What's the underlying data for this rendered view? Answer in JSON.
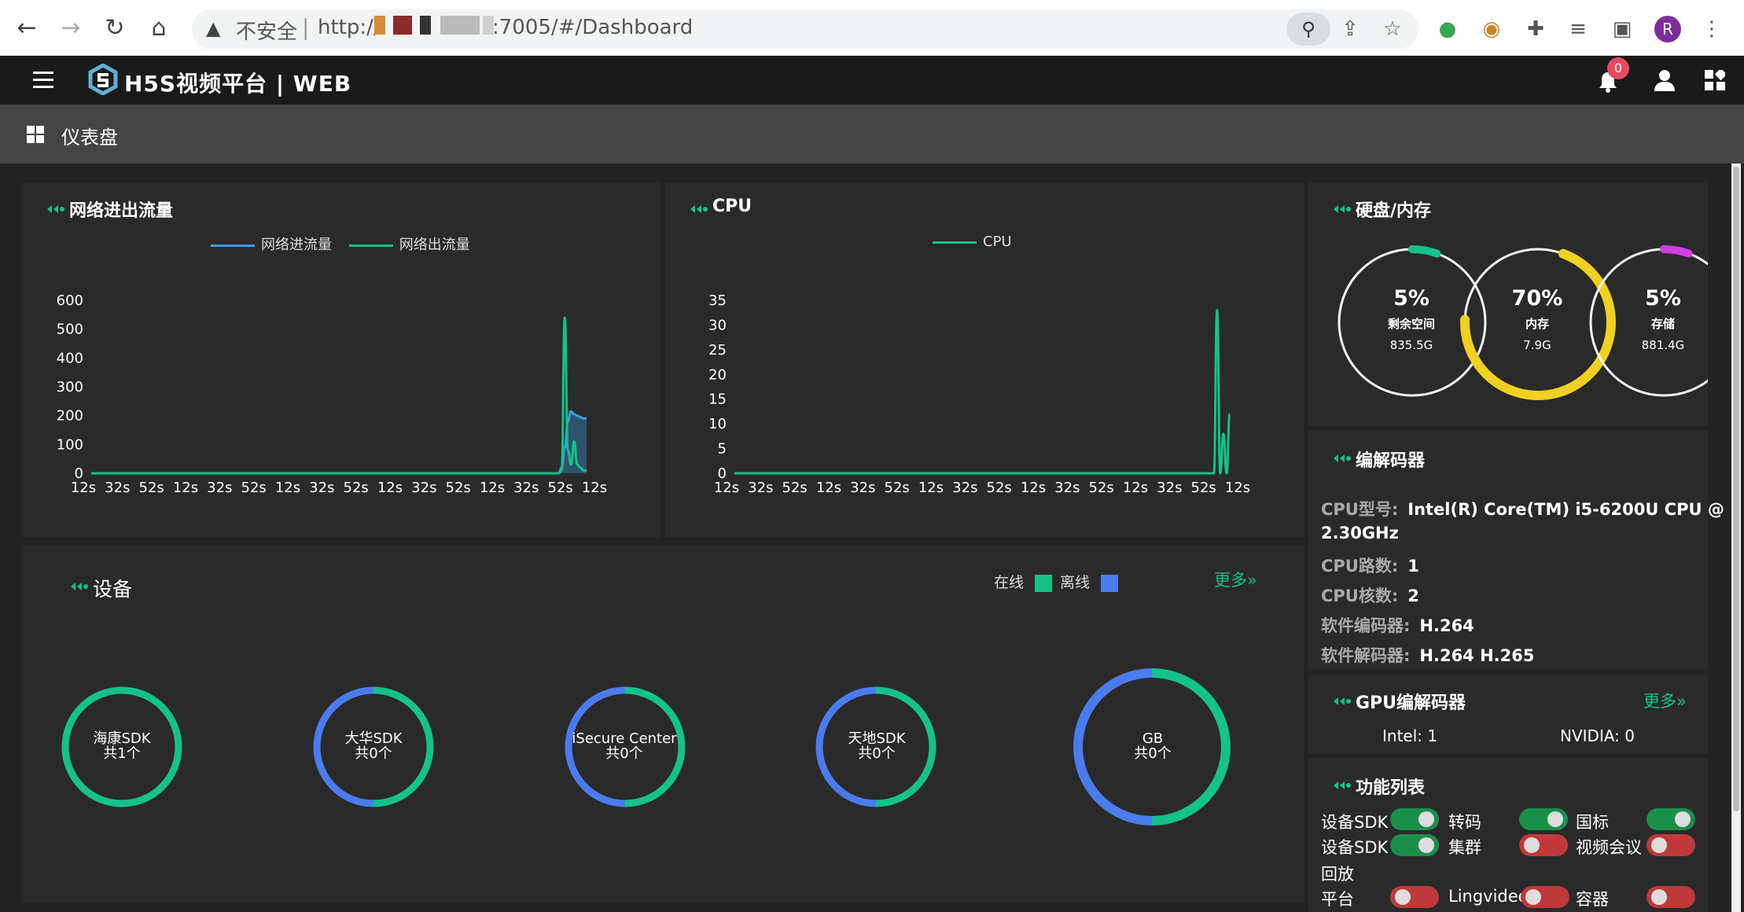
{
  "browser": {
    "insecure_label": "不安全",
    "url_prefix": "http://",
    "url_suffix": ":7005/#/Dashboard",
    "profile_initial": "R"
  },
  "app": {
    "brand": "H5S视频平台 | WEB",
    "notification_count": "0"
  },
  "breadcrumb": {
    "title": "仪表盘"
  },
  "colors": {
    "accent_green": "#14c28a",
    "accent_blue": "#4a7cf0",
    "network_in": "#3aa0e8",
    "network_out": "#14c28a",
    "memory_gauge": "#f0d020",
    "storage_gauge": "#d040e0",
    "toggle_on": "#1a8f4a",
    "toggle_off": "#c0393a"
  },
  "panels": {
    "network": {
      "title": "网络进出流量"
    },
    "cpu": {
      "title": "CPU"
    },
    "disk": {
      "title": "硬盘/内存"
    },
    "codec": {
      "title": "编解码器"
    },
    "gpu": {
      "title": "GPU编解码器",
      "more": "更多»"
    },
    "features": {
      "title": "功能列表"
    },
    "devices": {
      "title": "设备",
      "online_label": "在线",
      "offline_label": "离线",
      "more": "更多»"
    }
  },
  "chart_data": [
    {
      "type": "line",
      "chart": "network",
      "series": [
        {
          "name": "网络进流量",
          "values": [
            0,
            0,
            0,
            0,
            0,
            0,
            0,
            0,
            0,
            0,
            0,
            0,
            0,
            0,
            0,
            0,
            0,
            0,
            0,
            0,
            0,
            0,
            0,
            0,
            0,
            0,
            0,
            0,
            0,
            0,
            0,
            0,
            0,
            0,
            0,
            0,
            0,
            0,
            0,
            0,
            0,
            0,
            0,
            0,
            0,
            0,
            0,
            0,
            0,
            0,
            0,
            0,
            0,
            0,
            0,
            0,
            0,
            0,
            0,
            0,
            0,
            0,
            0,
            0,
            0,
            0,
            0,
            0,
            0,
            0,
            0,
            0,
            0,
            0,
            0,
            0,
            0,
            0,
            0,
            0,
            0,
            0,
            0,
            0,
            0,
            0,
            0,
            0,
            0,
            0,
            0,
            0,
            0,
            0,
            0,
            0,
            0,
            0,
            0,
            0,
            0,
            0,
            0,
            0,
            0,
            0,
            0,
            0,
            0,
            0,
            0,
            0,
            0,
            0,
            0,
            0,
            0,
            0,
            0,
            0,
            0,
            0,
            0,
            0,
            0,
            0,
            0,
            0,
            0,
            0,
            0,
            0,
            0,
            0,
            0,
            0,
            0,
            0,
            0,
            0,
            0,
            0,
            0,
            0,
            0,
            0,
            0,
            0,
            0,
            0,
            0,
            20,
            90,
            180,
            215,
            205,
            200,
            195,
            190,
            190
          ]
        },
        {
          "name": "网络出流量",
          "values": [
            0,
            0,
            0,
            0,
            0,
            0,
            0,
            0,
            0,
            0,
            0,
            0,
            0,
            0,
            0,
            0,
            0,
            0,
            0,
            0,
            0,
            0,
            0,
            0,
            0,
            0,
            0,
            0,
            0,
            0,
            0,
            0,
            0,
            0,
            0,
            0,
            0,
            0,
            0,
            0,
            0,
            0,
            0,
            0,
            0,
            0,
            0,
            0,
            0,
            0,
            0,
            0,
            0,
            0,
            0,
            0,
            0,
            0,
            0,
            0,
            0,
            0,
            0,
            0,
            0,
            0,
            0,
            0,
            0,
            0,
            0,
            0,
            0,
            0,
            0,
            0,
            0,
            0,
            0,
            0,
            0,
            0,
            0,
            0,
            0,
            0,
            0,
            0,
            0,
            0,
            0,
            0,
            0,
            0,
            0,
            0,
            0,
            0,
            0,
            0,
            0,
            0,
            0,
            0,
            0,
            0,
            0,
            0,
            0,
            0,
            0,
            0,
            0,
            0,
            0,
            0,
            0,
            0,
            0,
            0,
            0,
            0,
            0,
            0,
            0,
            0,
            0,
            0,
            0,
            0,
            0,
            0,
            0,
            0,
            0,
            0,
            0,
            0,
            0,
            0,
            0,
            0,
            0,
            0,
            0,
            0,
            0,
            0,
            0,
            0,
            0,
            10,
            540,
            80,
            30,
            110,
            30,
            20,
            10,
            10
          ]
        }
      ],
      "ylim": [
        0,
        600
      ],
      "yticks": [
        "0",
        "100",
        "200",
        "300",
        "400",
        "500",
        "600"
      ],
      "xtick_labels": [
        "12s",
        "32s",
        "52s",
        "12s",
        "32s",
        "52s",
        "12s",
        "32s",
        "52s",
        "12s",
        "32s",
        "52s",
        "12s",
        "32s",
        "52s",
        "12s"
      ]
    },
    {
      "type": "line",
      "chart": "cpu",
      "series": [
        {
          "name": "CPU",
          "values": [
            0,
            0,
            0,
            0,
            0,
            0,
            0,
            0,
            0,
            0,
            0,
            0,
            0,
            0,
            0,
            0,
            0,
            0,
            0,
            0,
            0,
            0,
            0,
            0,
            0,
            0,
            0,
            0,
            0,
            0,
            0,
            0,
            0,
            0,
            0,
            0,
            0,
            0,
            0,
            0,
            0,
            0,
            0,
            0,
            0,
            0,
            0,
            0,
            0,
            0,
            0,
            0,
            0,
            0,
            0,
            0,
            0,
            0,
            0,
            0,
            0,
            0,
            0,
            0,
            0,
            0,
            0,
            0,
            0,
            0,
            0,
            0,
            0,
            0,
            0,
            0,
            0,
            0,
            0,
            0,
            0,
            0,
            0,
            0,
            0,
            0,
            0,
            0,
            0,
            0,
            0,
            0,
            0,
            0,
            0,
            0,
            0,
            0,
            0,
            0,
            0,
            0,
            0,
            0,
            0,
            0,
            0,
            0,
            0,
            0,
            0,
            0,
            0,
            0,
            0,
            0,
            0,
            0,
            0,
            0,
            0,
            0,
            0,
            0,
            0,
            0,
            0,
            0,
            0,
            0,
            0,
            0,
            0,
            0,
            0,
            0,
            0,
            0,
            0,
            0,
            0,
            0,
            0,
            0,
            0,
            0,
            0,
            0,
            0,
            0,
            0,
            0,
            33,
            0,
            8,
            0,
            12
          ]
        }
      ],
      "ylim": [
        0,
        35
      ],
      "yticks": [
        "0",
        "5",
        "10",
        "15",
        "20",
        "25",
        "30",
        "35"
      ],
      "xtick_labels": [
        "12s",
        "32s",
        "52s",
        "12s",
        "32s",
        "52s",
        "12s",
        "32s",
        "52s",
        "12s",
        "32s",
        "52s",
        "12s",
        "32s",
        "52s",
        "12s"
      ]
    }
  ],
  "disk": [
    {
      "pct": "5%",
      "label": "剩余空间",
      "size": "835.5G",
      "value": 0.05,
      "color": "#14c28a"
    },
    {
      "pct": "70%",
      "label": "内存",
      "size": "7.9G",
      "value": 0.7,
      "color": "#f0d020"
    },
    {
      "pct": "5%",
      "label": "存储",
      "size": "881.4G",
      "value": 0.05,
      "color": "#d040e0"
    }
  ],
  "codec": {
    "cpu_model_label": "CPU型号:",
    "cpu_model": "Intel(R) Core(TM) i5-6200U CPU @",
    "cpu_model_cont": "2.30GHz",
    "cpu_count_label": "CPU路数:",
    "cpu_count": "1",
    "cpu_cores_label": "CPU核数:",
    "cpu_cores": "2",
    "sw_encoder_label": "软件编码器:",
    "sw_encoder": "H.264",
    "sw_decoder_label": "软件解码器:",
    "sw_decoder": "H.264 H.265"
  },
  "gpu": {
    "intel": "Intel: 1",
    "nvidia": "NVIDIA: 0"
  },
  "features": [
    {
      "label": "设备SDK",
      "on": true
    },
    {
      "label": "转码",
      "on": true
    },
    {
      "label": "国标",
      "on": true
    },
    {
      "label": "设备SDK",
      "label2": "回放",
      "on": true
    },
    {
      "label": "集群",
      "on": false
    },
    {
      "label": "视频会议",
      "on": false
    },
    {
      "label": "平台",
      "on": false
    },
    {
      "label": "Lingvideo",
      "on": false
    },
    {
      "label": "容器",
      "on": false
    }
  ],
  "devices": [
    {
      "name": "海康SDK",
      "count": "共1个",
      "online": 1,
      "total": 1
    },
    {
      "name": "大华SDK",
      "count": "共0个",
      "online": 0,
      "total": 0
    },
    {
      "name": "iSecure Center",
      "count": "共0个",
      "online": 0,
      "total": 0
    },
    {
      "name": "天地SDK",
      "count": "共0个",
      "online": 0,
      "total": 0
    },
    {
      "name": "GB",
      "count": "共0个",
      "online": 0,
      "total": 0
    }
  ]
}
